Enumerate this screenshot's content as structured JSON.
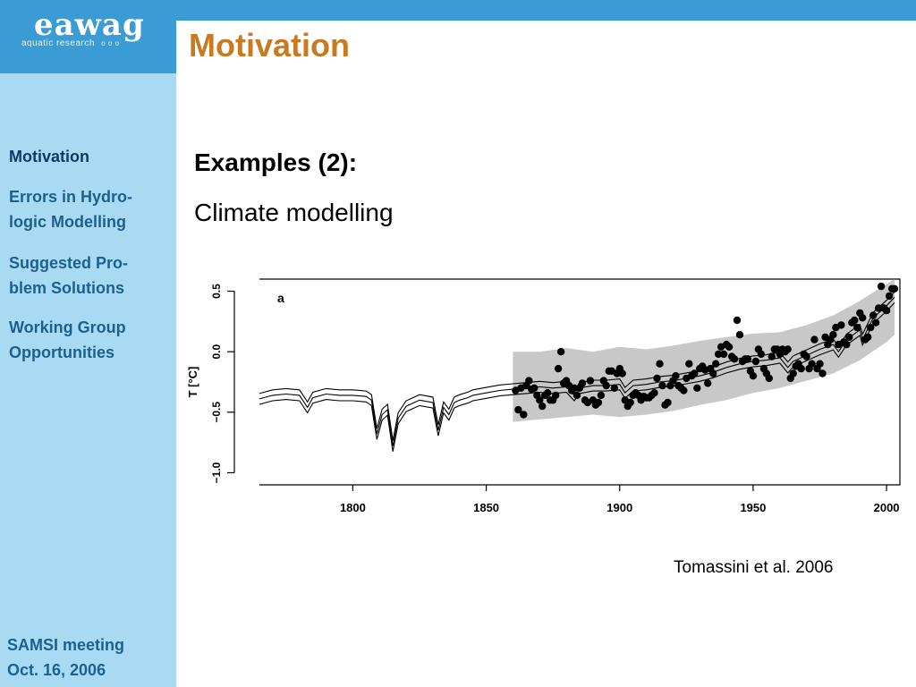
{
  "logo": {
    "name": "eawag",
    "tagline": "aquatic research",
    "year": "o o o"
  },
  "sidebar": {
    "items": [
      {
        "label": "Motivation"
      },
      {
        "label": "Errors in Hydro-\nlogic Modelling"
      },
      {
        "label": "Suggested Pro-\nblem Solutions"
      },
      {
        "label": "Working Group\nOpportunities"
      }
    ],
    "footer": "SAMSI meeting\nOct. 16, 2006"
  },
  "slide": {
    "title": "Motivation",
    "subheading": "Examples (2):",
    "subtext": "Climate modelling",
    "citation": "Tomassini et al. 2006"
  },
  "colors": {
    "blue": "#3a9bd5",
    "sidebar": "#a8dbf3",
    "title": "#c77a22",
    "band": "#c8c8c8"
  },
  "chart_data": {
    "type": "line",
    "panel_label": "a",
    "ylabel": "T [°C]",
    "xlim": [
      1765,
      2005
    ],
    "ylim": [
      -1.1,
      0.6
    ],
    "xticks": [
      1800,
      1850,
      1900,
      1950,
      2000
    ],
    "yticks": [
      -1.0,
      -0.5,
      0.0,
      0.5
    ],
    "ytick_labels": [
      "−1.0",
      "−0.5",
      "0.0",
      "0.5"
    ],
    "series_center": [
      [
        1765,
        -0.39
      ],
      [
        1770,
        -0.36
      ],
      [
        1775,
        -0.35
      ],
      [
        1780,
        -0.36
      ],
      [
        1783,
        -0.46
      ],
      [
        1785,
        -0.38
      ],
      [
        1790,
        -0.35
      ],
      [
        1795,
        -0.36
      ],
      [
        1800,
        -0.36
      ],
      [
        1805,
        -0.37
      ],
      [
        1807,
        -0.4
      ],
      [
        1809,
        -0.68
      ],
      [
        1811,
        -0.52
      ],
      [
        1813,
        -0.48
      ],
      [
        1815,
        -0.78
      ],
      [
        1817,
        -0.55
      ],
      [
        1820,
        -0.45
      ],
      [
        1825,
        -0.4
      ],
      [
        1830,
        -0.42
      ],
      [
        1832,
        -0.65
      ],
      [
        1834,
        -0.46
      ],
      [
        1836,
        -0.52
      ],
      [
        1838,
        -0.42
      ],
      [
        1840,
        -0.4
      ],
      [
        1843,
        -0.38
      ],
      [
        1845,
        -0.36
      ],
      [
        1850,
        -0.34
      ],
      [
        1855,
        -0.32
      ],
      [
        1860,
        -0.31
      ],
      [
        1865,
        -0.3
      ],
      [
        1870,
        -0.29
      ],
      [
        1875,
        -0.3
      ],
      [
        1880,
        -0.29
      ],
      [
        1883,
        -0.36
      ],
      [
        1885,
        -0.3
      ],
      [
        1890,
        -0.28
      ],
      [
        1895,
        -0.28
      ],
      [
        1900,
        -0.27
      ],
      [
        1902,
        -0.34
      ],
      [
        1905,
        -0.28
      ],
      [
        1910,
        -0.27
      ],
      [
        1915,
        -0.25
      ],
      [
        1920,
        -0.24
      ],
      [
        1925,
        -0.22
      ],
      [
        1930,
        -0.2
      ],
      [
        1935,
        -0.17
      ],
      [
        1940,
        -0.13
      ],
      [
        1945,
        -0.1
      ],
      [
        1950,
        -0.08
      ],
      [
        1955,
        -0.07
      ],
      [
        1960,
        -0.05
      ],
      [
        1963,
        -0.13
      ],
      [
        1965,
        -0.08
      ],
      [
        1970,
        -0.03
      ],
      [
        1975,
        0.02
      ],
      [
        1980,
        0.06
      ],
      [
        1982,
        0.0
      ],
      [
        1985,
        0.1
      ],
      [
        1990,
        0.18
      ],
      [
        1991,
        0.1
      ],
      [
        1995,
        0.28
      ],
      [
        2000,
        0.38
      ],
      [
        2003,
        0.45
      ]
    ],
    "band_width": 0.045,
    "uncertainty_band": [
      [
        1860,
        -0.58,
        0.0
      ],
      [
        1870,
        -0.56,
        0.0
      ],
      [
        1880,
        -0.54,
        0.03
      ],
      [
        1890,
        -0.52,
        0.0
      ],
      [
        1900,
        -0.54,
        0.04
      ],
      [
        1910,
        -0.52,
        0.02
      ],
      [
        1920,
        -0.49,
        0.05
      ],
      [
        1930,
        -0.44,
        0.09
      ],
      [
        1940,
        -0.4,
        0.12
      ],
      [
        1950,
        -0.34,
        0.15
      ],
      [
        1960,
        -0.3,
        0.16
      ],
      [
        1970,
        -0.24,
        0.22
      ],
      [
        1980,
        -0.18,
        0.3
      ],
      [
        1990,
        -0.07,
        0.42
      ],
      [
        2000,
        0.08,
        0.56
      ],
      [
        2003,
        0.14,
        0.6
      ]
    ],
    "observations": [
      [
        1861,
        -0.32
      ],
      [
        1862,
        -0.48
      ],
      [
        1863,
        -0.3
      ],
      [
        1864,
        -0.52
      ],
      [
        1865,
        -0.28
      ],
      [
        1866,
        -0.24
      ],
      [
        1867,
        -0.31
      ],
      [
        1868,
        -0.3
      ],
      [
        1869,
        -0.36
      ],
      [
        1870,
        -0.4
      ],
      [
        1871,
        -0.45
      ],
      [
        1872,
        -0.36
      ],
      [
        1873,
        -0.34
      ],
      [
        1874,
        -0.4
      ],
      [
        1875,
        -0.4
      ],
      [
        1876,
        -0.36
      ],
      [
        1877,
        -0.14
      ],
      [
        1878,
        0.0
      ],
      [
        1879,
        -0.26
      ],
      [
        1880,
        -0.24
      ],
      [
        1881,
        -0.28
      ],
      [
        1882,
        -0.32
      ],
      [
        1883,
        -0.3
      ],
      [
        1884,
        -0.36
      ],
      [
        1885,
        -0.3
      ],
      [
        1886,
        -0.26
      ],
      [
        1887,
        -0.4
      ],
      [
        1888,
        -0.42
      ],
      [
        1889,
        -0.24
      ],
      [
        1890,
        -0.4
      ],
      [
        1891,
        -0.44
      ],
      [
        1892,
        -0.42
      ],
      [
        1893,
        -0.36
      ],
      [
        1894,
        -0.24
      ],
      [
        1895,
        -0.28
      ],
      [
        1896,
        -0.16
      ],
      [
        1897,
        -0.16
      ],
      [
        1898,
        -0.3
      ],
      [
        1899,
        -0.18
      ],
      [
        1900,
        -0.14
      ],
      [
        1901,
        -0.18
      ],
      [
        1902,
        -0.4
      ],
      [
        1903,
        -0.45
      ],
      [
        1904,
        -0.42
      ],
      [
        1905,
        -0.36
      ],
      [
        1906,
        -0.34
      ],
      [
        1907,
        -0.36
      ],
      [
        1908,
        -0.4
      ],
      [
        1909,
        -0.37
      ],
      [
        1910,
        -0.38
      ],
      [
        1911,
        -0.38
      ],
      [
        1912,
        -0.36
      ],
      [
        1913,
        -0.34
      ],
      [
        1914,
        -0.22
      ],
      [
        1915,
        -0.1
      ],
      [
        1916,
        -0.28
      ],
      [
        1917,
        -0.44
      ],
      [
        1918,
        -0.42
      ],
      [
        1919,
        -0.28
      ],
      [
        1920,
        -0.24
      ],
      [
        1921,
        -0.2
      ],
      [
        1922,
        -0.28
      ],
      [
        1923,
        -0.3
      ],
      [
        1924,
        -0.32
      ],
      [
        1925,
        -0.22
      ],
      [
        1926,
        -0.1
      ],
      [
        1927,
        -0.2
      ],
      [
        1928,
        -0.18
      ],
      [
        1929,
        -0.3
      ],
      [
        1930,
        -0.14
      ],
      [
        1931,
        -0.12
      ],
      [
        1932,
        -0.15
      ],
      [
        1933,
        -0.26
      ],
      [
        1934,
        -0.14
      ],
      [
        1935,
        -0.18
      ],
      [
        1936,
        -0.1
      ],
      [
        1937,
        -0.02
      ],
      [
        1938,
        0.04
      ],
      [
        1939,
        -0.02
      ],
      [
        1940,
        0.06
      ],
      [
        1941,
        0.04
      ],
      [
        1942,
        -0.04
      ],
      [
        1943,
        -0.06
      ],
      [
        1944,
        0.26
      ],
      [
        1945,
        0.14
      ],
      [
        1946,
        -0.08
      ],
      [
        1947,
        -0.06
      ],
      [
        1948,
        -0.06
      ],
      [
        1949,
        -0.16
      ],
      [
        1950,
        -0.2
      ],
      [
        1951,
        -0.08
      ],
      [
        1952,
        0.02
      ],
      [
        1953,
        -0.02
      ],
      [
        1954,
        -0.14
      ],
      [
        1955,
        -0.18
      ],
      [
        1956,
        -0.22
      ],
      [
        1957,
        -0.04
      ],
      [
        1958,
        0.02
      ],
      [
        1959,
        0.02
      ],
      [
        1960,
        -0.02
      ],
      [
        1961,
        0.02
      ],
      [
        1962,
        0.0
      ],
      [
        1963,
        0.02
      ],
      [
        1964,
        -0.22
      ],
      [
        1965,
        -0.18
      ],
      [
        1966,
        -0.12
      ],
      [
        1967,
        -0.1
      ],
      [
        1968,
        -0.14
      ],
      [
        1969,
        -0.02
      ],
      [
        1970,
        -0.04
      ],
      [
        1971,
        -0.14
      ],
      [
        1972,
        -0.1
      ],
      [
        1973,
        0.1
      ],
      [
        1974,
        -0.14
      ],
      [
        1975,
        -0.1
      ],
      [
        1976,
        -0.18
      ],
      [
        1977,
        0.12
      ],
      [
        1978,
        0.06
      ],
      [
        1979,
        0.1
      ],
      [
        1980,
        0.14
      ],
      [
        1981,
        0.2
      ],
      [
        1982,
        0.06
      ],
      [
        1983,
        0.22
      ],
      [
        1984,
        0.08
      ],
      [
        1985,
        0.06
      ],
      [
        1986,
        0.12
      ],
      [
        1987,
        0.24
      ],
      [
        1988,
        0.26
      ],
      [
        1989,
        0.2
      ],
      [
        1990,
        0.32
      ],
      [
        1991,
        0.28
      ],
      [
        1992,
        0.1
      ],
      [
        1993,
        0.12
      ],
      [
        1994,
        0.2
      ],
      [
        1995,
        0.3
      ],
      [
        1996,
        0.24
      ],
      [
        1997,
        0.36
      ],
      [
        1998,
        0.54
      ],
      [
        1999,
        0.36
      ],
      [
        2000,
        0.34
      ],
      [
        2001,
        0.46
      ],
      [
        2002,
        0.52
      ],
      [
        2003,
        0.52
      ]
    ]
  }
}
